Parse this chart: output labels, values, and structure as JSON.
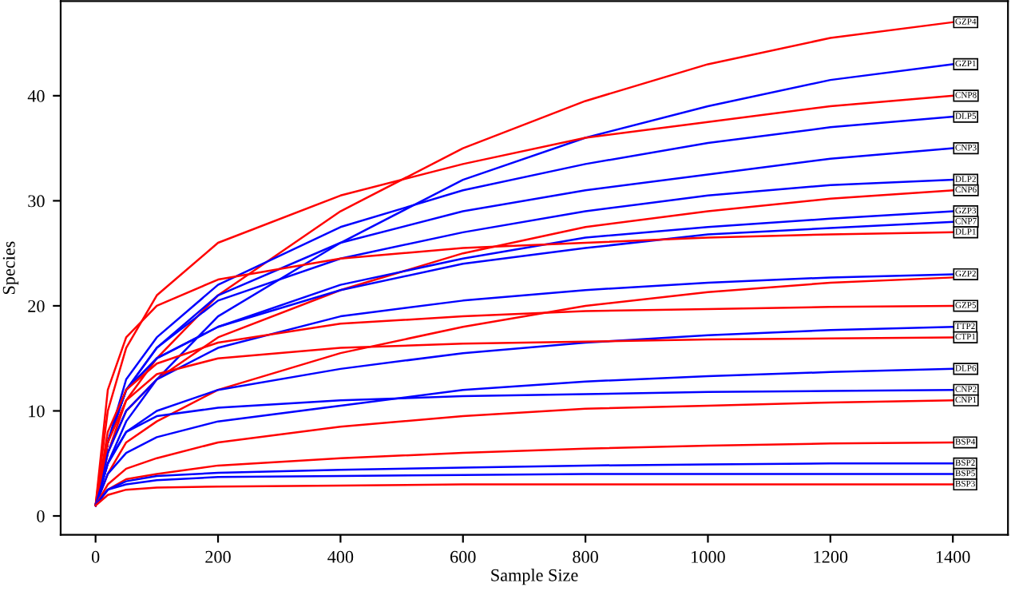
{
  "chart_data": {
    "type": "line",
    "xlabel": "Sample Size",
    "ylabel": "Species",
    "x": [
      0,
      20,
      50,
      100,
      200,
      400,
      600,
      800,
      1000,
      1200,
      1400
    ],
    "xlim": [
      -57,
      1490
    ],
    "ylim": [
      -1.8,
      49
    ],
    "xticks": [
      0,
      200,
      400,
      600,
      800,
      1000,
      1200,
      1400
    ],
    "yticks": [
      0,
      10,
      20,
      30,
      40
    ],
    "grid": false,
    "legend": false,
    "marker": "none",
    "line_style": "solid",
    "series": [
      {
        "name": "GZP4",
        "color": "#ff0000",
        "values": [
          1,
          6,
          11,
          15,
          21,
          29,
          35,
          39.5,
          43,
          45.5,
          47
        ]
      },
      {
        "name": "GZP1",
        "color": "#0000ff",
        "values": [
          1,
          5,
          9,
          13,
          19,
          26,
          32,
          36,
          39,
          41.5,
          43
        ]
      },
      {
        "name": "CNP8",
        "color": "#ff0000",
        "values": [
          1,
          10,
          16,
          21,
          26,
          30.5,
          33.5,
          36,
          37.5,
          39,
          40
        ]
      },
      {
        "name": "DLP5",
        "color": "#0000ff",
        "values": [
          1,
          7,
          13,
          17,
          22,
          27.5,
          31,
          33.5,
          35.5,
          37,
          38
        ]
      },
      {
        "name": "CNP3",
        "color": "#0000ff",
        "values": [
          1,
          7,
          12,
          16,
          21,
          26,
          29,
          31,
          32.5,
          34,
          35
        ]
      },
      {
        "name": "DLP2",
        "color": "#0000ff",
        "values": [
          1,
          7,
          12,
          16,
          20.5,
          24.5,
          27,
          29,
          30.5,
          31.5,
          32
        ]
      },
      {
        "name": "CNP6",
        "color": "#ff0000",
        "values": [
          1,
          6,
          10,
          13,
          17,
          21.5,
          25,
          27.5,
          29,
          30.2,
          31
        ]
      },
      {
        "name": "GZP3",
        "color": "#0000ff",
        "values": [
          1,
          7,
          12,
          15,
          18,
          22,
          24.5,
          26.5,
          27.5,
          28.3,
          29
        ]
      },
      {
        "name": "CNP7",
        "color": "#0000ff",
        "values": [
          1,
          7,
          12,
          15,
          18,
          21.5,
          24,
          25.5,
          26.8,
          27.4,
          28
        ]
      },
      {
        "name": "DLP1",
        "color": "#ff0000",
        "values": [
          1,
          12,
          17,
          20,
          22.5,
          24.5,
          25.5,
          26,
          26.5,
          26.8,
          27
        ]
      },
      {
        "name": "GZP2",
        "color": "#0000ff",
        "values": [
          1,
          6,
          10,
          13,
          16,
          19,
          20.5,
          21.5,
          22.2,
          22.7,
          23
        ]
      },
      {
        "color": "#ff0000",
        "values": [
          1,
          4,
          7,
          9,
          12,
          15.5,
          18,
          20,
          21.3,
          22.2,
          22.7
        ]
      },
      {
        "name": "GZP5",
        "color": "#ff0000",
        "values": [
          1,
          8,
          12,
          14.5,
          16.5,
          18.3,
          19,
          19.5,
          19.7,
          19.9,
          20
        ]
      },
      {
        "name": "TTP2",
        "color": "#0000ff",
        "values": [
          1,
          5,
          8,
          10,
          12,
          14,
          15.5,
          16.5,
          17.2,
          17.7,
          18
        ]
      },
      {
        "name": "CTP1",
        "color": "#ff0000",
        "values": [
          1,
          7,
          11,
          13.5,
          15,
          16,
          16.4,
          16.6,
          16.8,
          16.9,
          17
        ]
      },
      {
        "name": "DLP6",
        "color": "#0000ff",
        "values": [
          1,
          4,
          6,
          7.5,
          9,
          10.5,
          12,
          12.8,
          13.3,
          13.7,
          14
        ]
      },
      {
        "name": "CNP2",
        "color": "#0000ff",
        "values": [
          1,
          5,
          8,
          9.5,
          10.3,
          11,
          11.4,
          11.6,
          11.8,
          11.9,
          12
        ]
      },
      {
        "name": "CNP1",
        "color": "#ff0000",
        "values": [
          1,
          3,
          4.5,
          5.5,
          7,
          8.5,
          9.5,
          10.2,
          10.5,
          10.8,
          11
        ]
      },
      {
        "name": "BSP4",
        "color": "#ff0000",
        "values": [
          1,
          2.5,
          3.5,
          4,
          4.8,
          5.5,
          6,
          6.4,
          6.7,
          6.9,
          7
        ]
      },
      {
        "name": "BSP2",
        "color": "#0000ff",
        "values": [
          1,
          2.5,
          3.3,
          3.8,
          4.1,
          4.4,
          4.6,
          4.8,
          4.9,
          5,
          5
        ]
      },
      {
        "name": "BSP5",
        "color": "#0000ff",
        "values": [
          1,
          2.5,
          3,
          3.4,
          3.7,
          3.8,
          3.9,
          4,
          4,
          4,
          4
        ]
      },
      {
        "name": "BSP3",
        "color": "#ff0000",
        "values": [
          1,
          2,
          2.5,
          2.7,
          2.8,
          2.9,
          3,
          3,
          3,
          3,
          3
        ]
      }
    ]
  }
}
